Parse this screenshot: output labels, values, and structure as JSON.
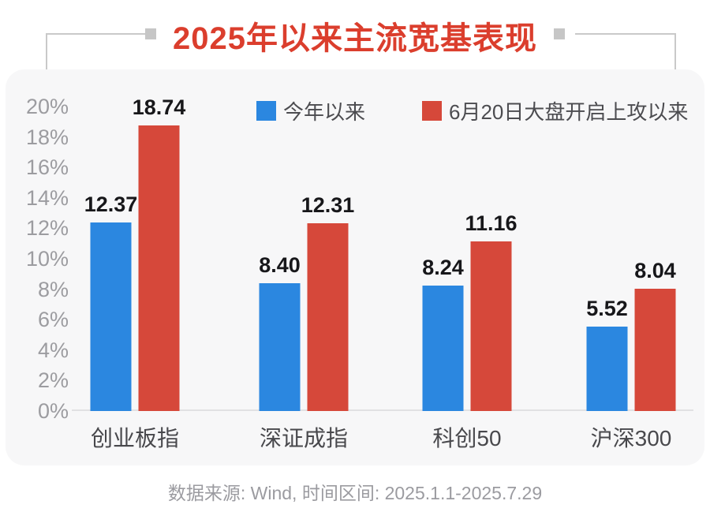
{
  "page": {
    "title": "2025年以来主流宽基表现",
    "footer": "数据来源: Wind, 时间区间: 2025.1.1-2025.7.29"
  },
  "colors": {
    "title_red": "#db3e2d",
    "series_blue": "#2b87e0",
    "series_red": "#d6483a",
    "panel_bg": "#f7f7f8",
    "axis_label_gray": "#9c9ca0"
  },
  "chart_data": {
    "type": "bar",
    "title": "2025年以来主流宽基表现",
    "categories": [
      "创业板指",
      "深证成指",
      "科创50",
      "沪深300"
    ],
    "series": [
      {
        "name": "今年以来",
        "color": "#2b87e0",
        "values": [
          12.37,
          8.4,
          8.24,
          5.52
        ]
      },
      {
        "name": "6月20日大盘开启上攻以来",
        "color": "#d6483a",
        "values": [
          18.74,
          12.31,
          11.16,
          8.04
        ]
      }
    ],
    "xlabel": "",
    "ylabel": "",
    "ylim": [
      0,
      20
    ],
    "ytick_step": 2,
    "yticks": [
      "20%",
      "18%",
      "16%",
      "14%",
      "12%",
      "10%",
      "8%",
      "6%",
      "4%",
      "2%",
      "0%"
    ],
    "value_label_decimals": 2,
    "legend_position": "top",
    "grid": false,
    "source_note": "数据来源: Wind, 时间区间: 2025.1.1-2025.7.29"
  }
}
